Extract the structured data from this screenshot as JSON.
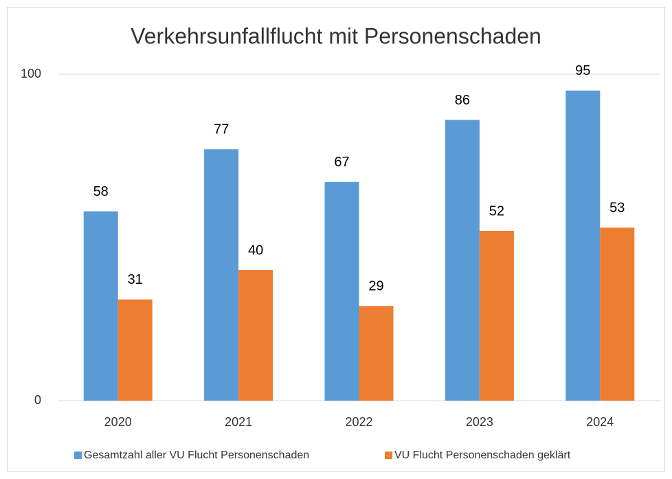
{
  "chart_data": {
    "type": "bar",
    "title": "Verkehrsunfallflucht mit Personenschaden",
    "categories": [
      "2020",
      "2021",
      "2022",
      "2023",
      "2024"
    ],
    "series": [
      {
        "name": "Gesamtzahl aller VU Flucht Personenschaden",
        "color": "#5b9bd5",
        "values": [
          58,
          77,
          67,
          86,
          95
        ]
      },
      {
        "name": "VU Flucht Personenschaden geklärt",
        "color": "#ed7d31",
        "values": [
          31,
          40,
          29,
          52,
          53
        ]
      }
    ],
    "ylim": [
      0,
      100
    ],
    "yticks": [
      0,
      100
    ],
    "grid": true,
    "legend": "bottom"
  }
}
